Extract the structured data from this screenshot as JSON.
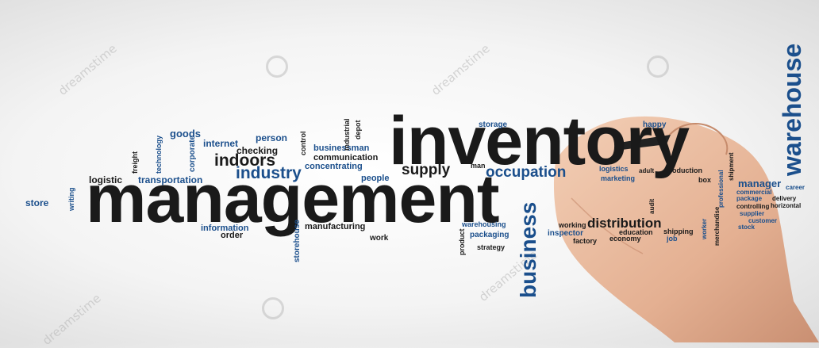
{
  "watermark": "dreamstime",
  "words": {
    "inventory": "inventory",
    "management": "management",
    "warehouse": "warehouse",
    "business": "business",
    "distribution": "distribution",
    "occupation": "occupation",
    "supply": "supply",
    "industry": "industry",
    "indoors": "indoors",
    "store": "store",
    "logistic": "logistic",
    "transportation": "transportation",
    "goods": "goods",
    "internet": "internet",
    "person": "person",
    "checking": "checking",
    "businessman": "businessman",
    "communication": "communication",
    "concentrating": "concentrating",
    "people": "people",
    "storage": "storage",
    "man": "man",
    "happy": "happy",
    "logistics": "logistics",
    "adult": "adult",
    "production": "production",
    "marketing": "marketing",
    "box": "box",
    "manager": "manager",
    "career": "career",
    "commercial": "commercial",
    "package": "package",
    "delivery": "delivery",
    "controlling": "controlling",
    "horizontal": "horizontal",
    "supplier": "supplier",
    "customer": "customer",
    "stock": "stock",
    "information": "information",
    "order": "order",
    "manufacturing": "manufacturing",
    "work": "work",
    "warehousing": "warehousing",
    "packaging": "packaging",
    "strategy": "strategy",
    "working": "working",
    "inspector": "inspector",
    "factory": "factory",
    "education": "education",
    "economy": "economy",
    "shipping": "shipping",
    "job": "job",
    "freight": "freight",
    "technology": "technology",
    "corporate": "corporate",
    "writing": "writing",
    "control": "control",
    "industrial": "industrial",
    "depot": "depot",
    "storehouse": "storehouse",
    "product": "product",
    "audit": "audit",
    "worker": "worker",
    "merchandise": "merchandise",
    "professional": "professional",
    "shipment": "shipment"
  }
}
